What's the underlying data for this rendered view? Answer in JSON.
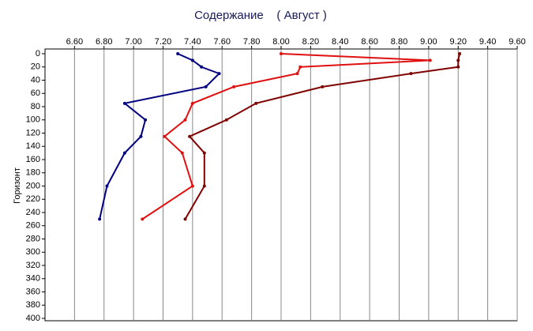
{
  "chart_data": {
    "type": "line",
    "orientation": "vertical-profile",
    "title": "Содержание    ( Август )",
    "y_label": "Горизонт",
    "y": [
      0,
      10,
      20,
      30,
      50,
      75,
      100,
      125,
      150,
      200,
      250
    ],
    "series": [
      {
        "color": "#000080",
        "values": [
          7.3,
          7.4,
          7.46,
          7.58,
          7.49,
          6.94,
          7.08,
          7.05,
          6.94,
          6.82,
          6.77
        ]
      },
      {
        "color": "#e01010",
        "values": [
          8.0,
          9.01,
          8.13,
          8.11,
          7.68,
          7.4,
          7.35,
          7.21,
          7.33,
          7.4,
          7.06
        ]
      },
      {
        "color": "#800000",
        "values": [
          9.21,
          9.2,
          9.2,
          8.88,
          8.28,
          7.83,
          7.63,
          7.38,
          7.48,
          7.48,
          7.35
        ]
      }
    ],
    "xlim": [
      6.4,
      9.6
    ],
    "xticks": [
      {
        "value": 6.6,
        "label": "6.60"
      },
      {
        "value": 6.8,
        "label": "6.80"
      },
      {
        "value": 7.0,
        "label": "7.00"
      },
      {
        "value": 7.2,
        "label": "7.20"
      },
      {
        "value": 7.4,
        "label": "7.40"
      },
      {
        "value": 7.6,
        "label": "7.60"
      },
      {
        "value": 7.8,
        "label": "7.80"
      },
      {
        "value": 8.0,
        "label": "8.00"
      },
      {
        "value": 8.2,
        "label": "8.20"
      },
      {
        "value": 8.4,
        "label": "8.40"
      },
      {
        "value": 8.6,
        "label": "8.60"
      },
      {
        "value": 8.8,
        "label": "8.80"
      },
      {
        "value": 9.0,
        "label": "9.00"
      },
      {
        "value": 9.2,
        "label": "9.20"
      },
      {
        "value": 9.4,
        "label": "9.40"
      },
      {
        "value": 9.6,
        "label": "9.60"
      }
    ],
    "ylim": [
      0,
      400
    ],
    "yticks": [
      0,
      20,
      40,
      60,
      80,
      100,
      120,
      140,
      160,
      180,
      200,
      220,
      240,
      260,
      280,
      300,
      320,
      340,
      360,
      380,
      400
    ],
    "y_inverted": true,
    "grid": true
  }
}
